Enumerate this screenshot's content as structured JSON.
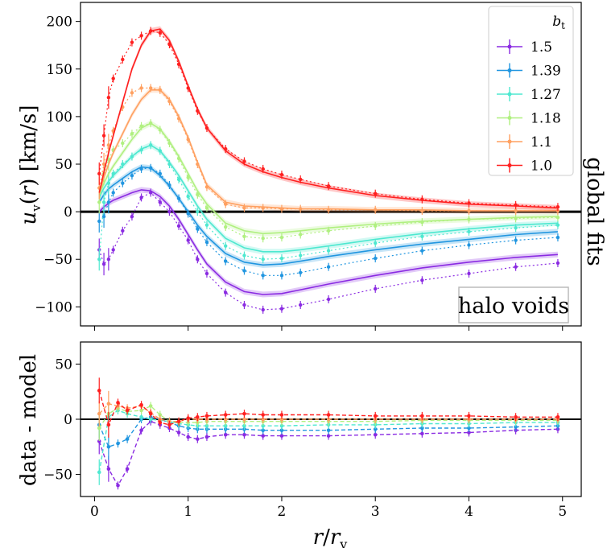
{
  "chart_data": [
    {
      "type": "line",
      "panel": "top",
      "ylabel": "u_v(r) [km/s]",
      "ylim": [
        -120,
        220
      ],
      "xlim": [
        -0.15,
        5.2
      ],
      "yticks": [
        -100,
        -50,
        0,
        50,
        100,
        150,
        200
      ],
      "annotation": "halo voids",
      "side_label": "global fits",
      "legend_title": "b_t",
      "legend_placement": "top-right",
      "reference_line": 0,
      "series": [
        {
          "name": "1.5",
          "color": "#8a2be2",
          "x": [
            0.05,
            0.1,
            0.15,
            0.2,
            0.3,
            0.4,
            0.5,
            0.6,
            0.7,
            0.8,
            0.9,
            1.0,
            1.1,
            1.2,
            1.4,
            1.6,
            1.8,
            2.0,
            2.2,
            2.5,
            3.0,
            3.5,
            4.0,
            4.5,
            4.95
          ],
          "model": [
            0,
            5,
            9,
            12,
            16,
            20,
            23,
            22,
            16,
            6,
            -8,
            -24,
            -40,
            -55,
            -74,
            -84,
            -87,
            -86,
            -82,
            -76,
            -67,
            -59,
            -53,
            -48,
            -45
          ],
          "data": [
            -40,
            -55,
            -50,
            -40,
            -20,
            -5,
            15,
            20,
            10,
            0,
            -15,
            -30,
            -50,
            -65,
            -85,
            -98,
            -103,
            -102,
            -98,
            -92,
            -81,
            -72,
            -65,
            -58,
            -54
          ]
        },
        {
          "name": "1.39",
          "color": "#2196e0",
          "x": [
            0.05,
            0.1,
            0.15,
            0.2,
            0.3,
            0.4,
            0.5,
            0.6,
            0.7,
            0.8,
            0.9,
            1.0,
            1.1,
            1.2,
            1.4,
            1.6,
            1.8,
            2.0,
            2.2,
            2.5,
            3.0,
            3.5,
            4.0,
            4.5,
            4.95
          ],
          "model": [
            10,
            18,
            24,
            28,
            35,
            42,
            47,
            46,
            38,
            27,
            14,
            0,
            -14,
            -26,
            -44,
            -53,
            -56,
            -55,
            -52,
            -47,
            -40,
            -34,
            -29,
            -24,
            -21
          ],
          "data": [
            -10,
            -5,
            10,
            20,
            30,
            38,
            45,
            46,
            40,
            28,
            14,
            -2,
            -18,
            -32,
            -52,
            -62,
            -67,
            -67,
            -64,
            -58,
            -49,
            -41,
            -35,
            -30,
            -27
          ]
        },
        {
          "name": "1.27",
          "color": "#4ee8d0",
          "x": [
            0.05,
            0.1,
            0.15,
            0.2,
            0.3,
            0.4,
            0.5,
            0.6,
            0.7,
            0.8,
            0.9,
            1.0,
            1.1,
            1.2,
            1.4,
            1.6,
            1.8,
            2.0,
            2.2,
            2.5,
            3.0,
            3.5,
            4.0,
            4.5,
            4.95
          ],
          "model": [
            15,
            25,
            32,
            38,
            48,
            58,
            66,
            70,
            64,
            52,
            38,
            22,
            6,
            -8,
            -28,
            -38,
            -42,
            -42,
            -40,
            -36,
            -29,
            -23,
            -18,
            -14,
            -12
          ],
          "data": [
            -50,
            10,
            30,
            40,
            50,
            58,
            65,
            70,
            64,
            50,
            34,
            16,
            0,
            -14,
            -36,
            -46,
            -50,
            -49,
            -46,
            -41,
            -33,
            -26,
            -21,
            -17,
            -14
          ]
        },
        {
          "name": "1.18",
          "color": "#b0f080",
          "x": [
            0.05,
            0.1,
            0.15,
            0.2,
            0.3,
            0.4,
            0.5,
            0.6,
            0.7,
            0.8,
            0.9,
            1.0,
            1.1,
            1.2,
            1.4,
            1.6,
            1.8,
            2.0,
            2.2,
            2.5,
            3.0,
            3.5,
            4.0,
            4.5,
            4.95
          ],
          "model": [
            18,
            30,
            40,
            48,
            62,
            76,
            88,
            93,
            87,
            74,
            58,
            40,
            22,
            8,
            -12,
            -20,
            -23,
            -22,
            -20,
            -17,
            -13,
            -10,
            -8,
            -6,
            -5
          ],
          "data": [
            10,
            40,
            55,
            65,
            72,
            82,
            90,
            93,
            86,
            72,
            56,
            36,
            18,
            4,
            -16,
            -26,
            -28,
            -27,
            -24,
            -20,
            -15,
            -11,
            -8,
            -7,
            -6
          ]
        },
        {
          "name": "1.1",
          "color": "#ffa060",
          "x": [
            0.05,
            0.1,
            0.15,
            0.2,
            0.3,
            0.4,
            0.5,
            0.6,
            0.7,
            0.8,
            0.9,
            1.0,
            1.1,
            1.2,
            1.4,
            1.6,
            1.8,
            2.0,
            2.2,
            2.5,
            3.0,
            3.5,
            4.0,
            4.5,
            4.95
          ],
          "model": [
            20,
            36,
            50,
            62,
            82,
            102,
            118,
            128,
            128,
            118,
            100,
            78,
            52,
            28,
            10,
            6,
            5,
            4,
            3,
            3,
            2,
            2,
            1,
            1,
            1
          ],
          "data": [
            25,
            50,
            70,
            85,
            110,
            125,
            130,
            130,
            128,
            116,
            98,
            76,
            50,
            26,
            8,
            4,
            4,
            3,
            3,
            2,
            2,
            1,
            1,
            1,
            1
          ]
        },
        {
          "name": "1.0",
          "color": "#ff2020",
          "x": [
            0.05,
            0.1,
            0.15,
            0.2,
            0.3,
            0.4,
            0.5,
            0.6,
            0.7,
            0.8,
            0.9,
            1.0,
            1.1,
            1.2,
            1.4,
            1.6,
            1.8,
            2.0,
            2.2,
            2.5,
            3.0,
            3.5,
            4.0,
            4.5,
            4.95
          ],
          "model": [
            20,
            42,
            62,
            80,
            115,
            150,
            175,
            190,
            192,
            180,
            158,
            132,
            108,
            88,
            64,
            50,
            42,
            36,
            31,
            25,
            17,
            12,
            8,
            6,
            4
          ],
          "data": [
            40,
            80,
            120,
            140,
            160,
            178,
            185,
            190,
            188,
            176,
            155,
            130,
            106,
            88,
            66,
            53,
            45,
            39,
            34,
            27,
            19,
            13,
            9,
            7,
            5
          ]
        }
      ]
    },
    {
      "type": "line",
      "panel": "bottom",
      "xlabel": "r/r_v",
      "ylabel": "data - model",
      "ylim": [
        -70,
        70
      ],
      "xlim": [
        -0.15,
        5.2
      ],
      "yticks": [
        -50,
        0,
        50
      ],
      "xticks": [
        0,
        1,
        2,
        3,
        4,
        5
      ],
      "reference_line": 0,
      "series": [
        {
          "name": "1.5",
          "color": "#8a2be2",
          "x": [
            0.05,
            0.15,
            0.25,
            0.35,
            0.5,
            0.6,
            0.7,
            0.8,
            0.9,
            1.0,
            1.1,
            1.2,
            1.4,
            1.6,
            1.8,
            2.0,
            2.5,
            3.0,
            3.5,
            4.0,
            4.5,
            4.95
          ],
          "values": [
            -20,
            -45,
            -60,
            -45,
            -10,
            -2,
            -5,
            -8,
            -12,
            -16,
            -18,
            -16,
            -14,
            -14,
            -15,
            -15,
            -15,
            -14,
            -13,
            -12,
            -10,
            -9
          ]
        },
        {
          "name": "1.39",
          "color": "#2196e0",
          "x": [
            0.05,
            0.15,
            0.25,
            0.35,
            0.5,
            0.6,
            0.7,
            0.8,
            0.9,
            1.0,
            1.1,
            1.2,
            1.4,
            1.6,
            1.8,
            2.0,
            2.5,
            3.0,
            3.5,
            4.0,
            4.5,
            4.95
          ],
          "values": [
            -5,
            -25,
            -22,
            -18,
            0,
            2,
            0,
            -3,
            -6,
            -8,
            -9,
            -9,
            -9,
            -9,
            -10,
            -10,
            -10,
            -9,
            -8,
            -8,
            -7,
            -6
          ]
        },
        {
          "name": "1.27",
          "color": "#4ee8d0",
          "x": [
            0.05,
            0.15,
            0.25,
            0.35,
            0.5,
            0.6,
            0.7,
            0.8,
            0.9,
            1.0,
            1.1,
            1.2,
            1.4,
            1.6,
            1.8,
            2.0,
            2.5,
            3.0,
            3.5,
            4.0,
            4.5,
            4.95
          ],
          "values": [
            -48,
            2,
            8,
            5,
            2,
            0,
            -1,
            -2,
            -4,
            -5,
            -6,
            -6,
            -6,
            -6,
            -6,
            -6,
            -5,
            -5,
            -4,
            -4,
            -3,
            -3
          ]
        },
        {
          "name": "1.18",
          "color": "#b0f080",
          "x": [
            0.05,
            0.15,
            0.25,
            0.35,
            0.5,
            0.6,
            0.7,
            0.8,
            0.9,
            1.0,
            1.1,
            1.2,
            1.4,
            1.6,
            1.8,
            2.0,
            2.5,
            3.0,
            3.5,
            4.0,
            4.5,
            4.95
          ],
          "values": [
            -8,
            5,
            10,
            7,
            8,
            12,
            4,
            -2,
            -3,
            -3,
            -3,
            -2,
            -2,
            -2,
            -2,
            -2,
            -2,
            -2,
            -1,
            -1,
            -1,
            -1
          ]
        },
        {
          "name": "1.1",
          "color": "#ffa060",
          "x": [
            0.05,
            0.15,
            0.25,
            0.35,
            0.5,
            0.6,
            0.7,
            0.8,
            0.9,
            1.0,
            1.1,
            1.2,
            1.4,
            1.6,
            1.8,
            2.0,
            2.5,
            3.0,
            3.5,
            4.0,
            4.5,
            4.95
          ],
          "values": [
            5,
            14,
            12,
            10,
            12,
            6,
            0,
            -2,
            -2,
            0,
            0,
            0,
            0,
            0,
            0,
            0,
            0,
            0,
            0,
            0,
            0,
            0
          ]
        },
        {
          "name": "1.0",
          "color": "#ff2020",
          "x": [
            0.05,
            0.15,
            0.25,
            0.35,
            0.5,
            0.6,
            0.7,
            0.8,
            0.9,
            1.0,
            1.1,
            1.2,
            1.4,
            1.6,
            1.8,
            2.0,
            2.5,
            3.0,
            3.5,
            4.0,
            4.5,
            4.95
          ],
          "values": [
            26,
            -5,
            15,
            8,
            13,
            5,
            -3,
            -5,
            -2,
            1,
            2,
            3,
            4,
            5,
            4,
            4,
            4,
            3,
            3,
            3,
            2,
            2
          ]
        }
      ]
    }
  ]
}
